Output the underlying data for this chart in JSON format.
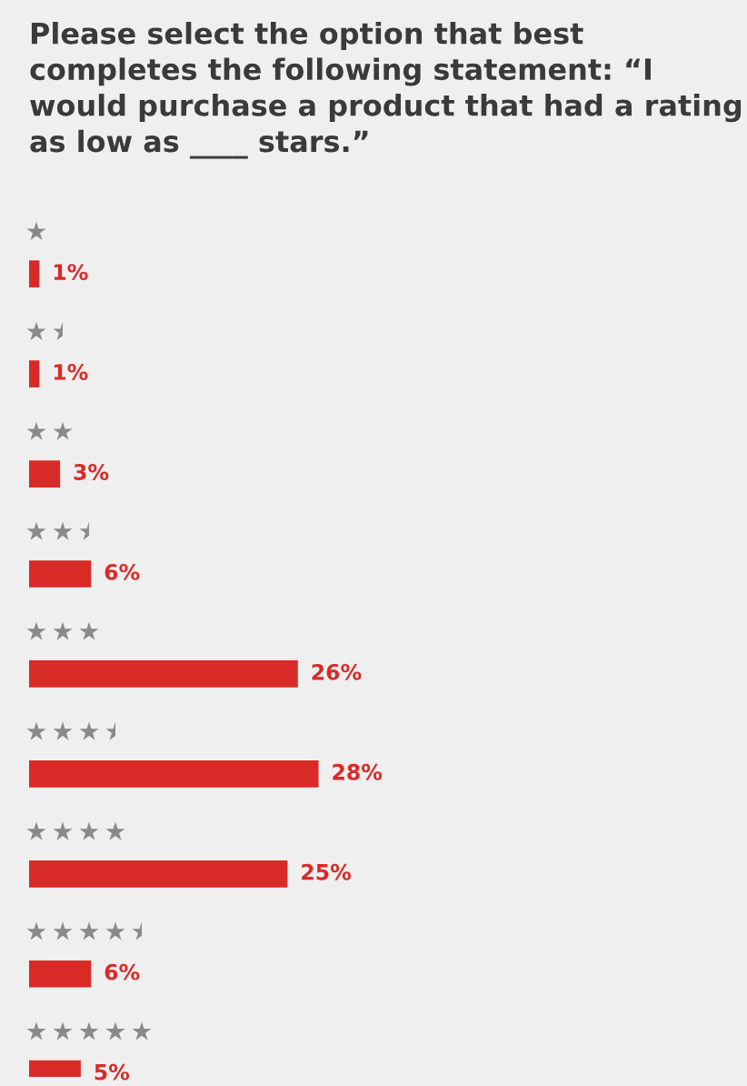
{
  "chart_data": {
    "type": "bar",
    "orientation": "horizontal",
    "title": "Please select the option that best completes the following statement: “I would purchase a product that had a rating as low as ____ stars.”",
    "categories": [
      null,
      null,
      null,
      null,
      null,
      null,
      null,
      null,
      null
    ],
    "values": [
      1,
      1,
      3,
      6,
      26,
      28,
      25,
      6,
      5
    ],
    "value_labels": [
      "1%",
      "1%",
      "3%",
      "6%",
      "26%",
      "28%",
      "25%",
      "6%",
      "5%"
    ],
    "color": "#d82b27"
  }
}
